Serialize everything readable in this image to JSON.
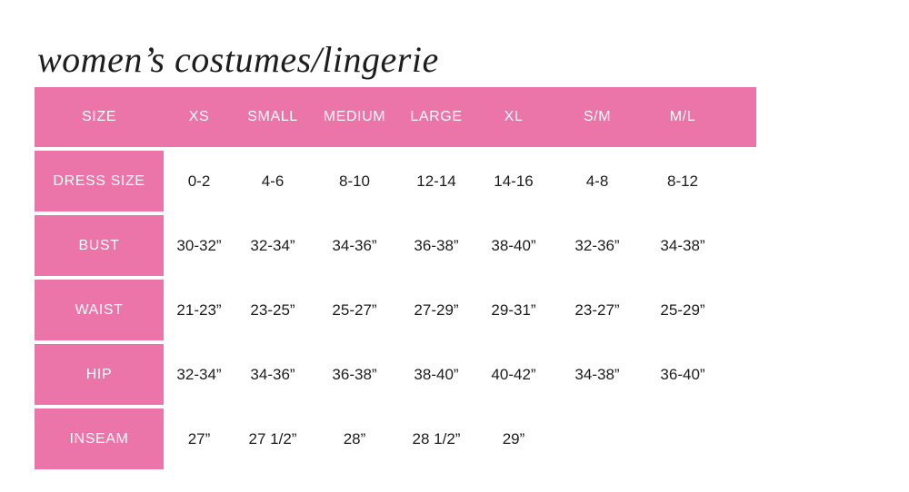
{
  "title": "women’s costumes/lingerie",
  "colors": {
    "accent_pink": "#eb74a8",
    "header_text": "#ffffff",
    "data_text": "#1c1c1c",
    "title_text": "#1d1d1d",
    "background": "#ffffff"
  },
  "chart_data": {
    "type": "table",
    "title": "women’s costumes/lingerie",
    "columns": [
      "SIZE",
      "XS",
      "SMALL",
      "MEDIUM",
      "LARGE",
      "XL",
      "S/M",
      "M/L"
    ],
    "rows": [
      {
        "label": "DRESS SIZE",
        "values": [
          "0-2",
          "4-6",
          "8-10",
          "12-14",
          "14-16",
          "4-8",
          "8-12"
        ]
      },
      {
        "label": "BUST",
        "values": [
          "30-32”",
          "32-34”",
          "34-36”",
          "36-38”",
          "38-40”",
          "32-36”",
          "34-38”"
        ]
      },
      {
        "label": "WAIST",
        "values": [
          "21-23”",
          "23-25”",
          "25-27”",
          "27-29”",
          "29-31”",
          "23-27”",
          "25-29”"
        ]
      },
      {
        "label": "HIP",
        "values": [
          "32-34”",
          "34-36”",
          "36-38”",
          "38-40”",
          "40-42”",
          "34-38”",
          "36-40”"
        ]
      },
      {
        "label": "INSEAM",
        "values": [
          "27”",
          "27 1/2”",
          "28”",
          "28 1/2”",
          "29”",
          "",
          ""
        ]
      }
    ]
  }
}
